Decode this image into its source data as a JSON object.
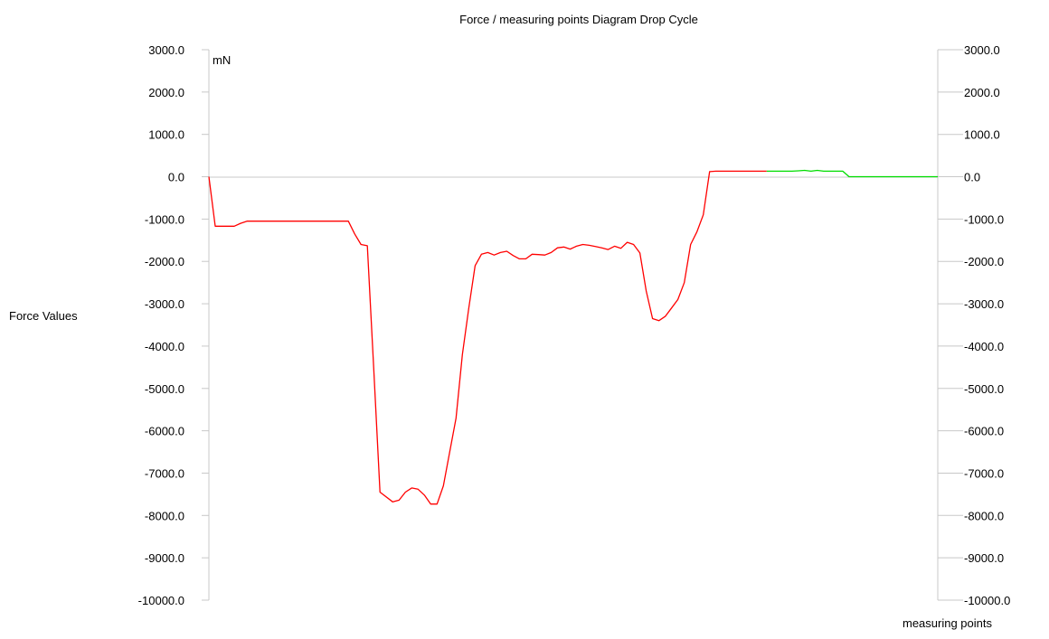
{
  "chart_data": {
    "type": "line",
    "title": "Force / measuring points Diagram Drop Cycle",
    "ylabel": "Force Values",
    "xlabel": "measuring points",
    "unit": "mN",
    "ylim": [
      -10000,
      3000
    ],
    "y_ticks": [
      "3000.0",
      "2000.0",
      "1000.0",
      "0.0",
      "-1000.0",
      "-2000.0",
      "-3000.0",
      "-4000.0",
      "-5000.0",
      "-6000.0",
      "-7000.0",
      "-8000.0",
      "-9000.0",
      "-10000.0"
    ],
    "y_tick_values": [
      3000,
      2000,
      1000,
      0,
      -1000,
      -2000,
      -3000,
      -4000,
      -5000,
      -6000,
      -7000,
      -8000,
      -9000,
      -10000
    ],
    "xlim": [
      0,
      115
    ],
    "grid": false,
    "series": [
      {
        "color": "#ff0000",
        "x": [
          0,
          1,
          2,
          4,
          5,
          6,
          10,
          15,
          20,
          22,
          23,
          24,
          25,
          26,
          27,
          29,
          30,
          31,
          32,
          33,
          34,
          35,
          36,
          37,
          38,
          39,
          40,
          41,
          42,
          43,
          44,
          45,
          46,
          47,
          48,
          49,
          50,
          51,
          52,
          53,
          54,
          55,
          56,
          57,
          58,
          59,
          60,
          61,
          62,
          63,
          64,
          65,
          66,
          67,
          68,
          69,
          70,
          71,
          72,
          73,
          74,
          75,
          76,
          77,
          78,
          79,
          80,
          81,
          82,
          83,
          84,
          85,
          86,
          87,
          88
        ],
        "values": [
          0,
          -1170,
          -1170,
          -1170,
          -1100,
          -1050,
          -1050,
          -1050,
          -1050,
          -1050,
          -1350,
          -1600,
          -1630,
          -4500,
          -7450,
          -7680,
          -7640,
          -7450,
          -7350,
          -7380,
          -7520,
          -7730,
          -7730,
          -7300,
          -6500,
          -5700,
          -4200,
          -3100,
          -2100,
          -1830,
          -1790,
          -1850,
          -1790,
          -1760,
          -1860,
          -1940,
          -1940,
          -1830,
          -1840,
          -1850,
          -1790,
          -1680,
          -1660,
          -1710,
          -1640,
          -1600,
          -1620,
          -1650,
          -1680,
          -1720,
          -1640,
          -1690,
          -1550,
          -1600,
          -1800,
          -2700,
          -3350,
          -3400,
          -3300,
          -3100,
          -2900,
          -2500,
          -1600,
          -1300,
          -900,
          120,
          130,
          130,
          130,
          130,
          130,
          130,
          130,
          130,
          130
        ]
      },
      {
        "color": "#00dd00",
        "x": [
          88,
          89,
          90,
          91,
          92,
          93,
          94,
          95,
          96,
          97,
          98,
          99,
          100,
          101,
          102,
          103,
          104,
          105,
          106,
          107,
          108,
          109,
          110,
          111,
          112,
          113,
          114,
          115
        ],
        "values": [
          130,
          130,
          130,
          130,
          130,
          140,
          150,
          130,
          150,
          130,
          130,
          130,
          130,
          0,
          0,
          0,
          0,
          0,
          0,
          0,
          0,
          0,
          0,
          0,
          0,
          0,
          0,
          0
        ]
      }
    ]
  }
}
